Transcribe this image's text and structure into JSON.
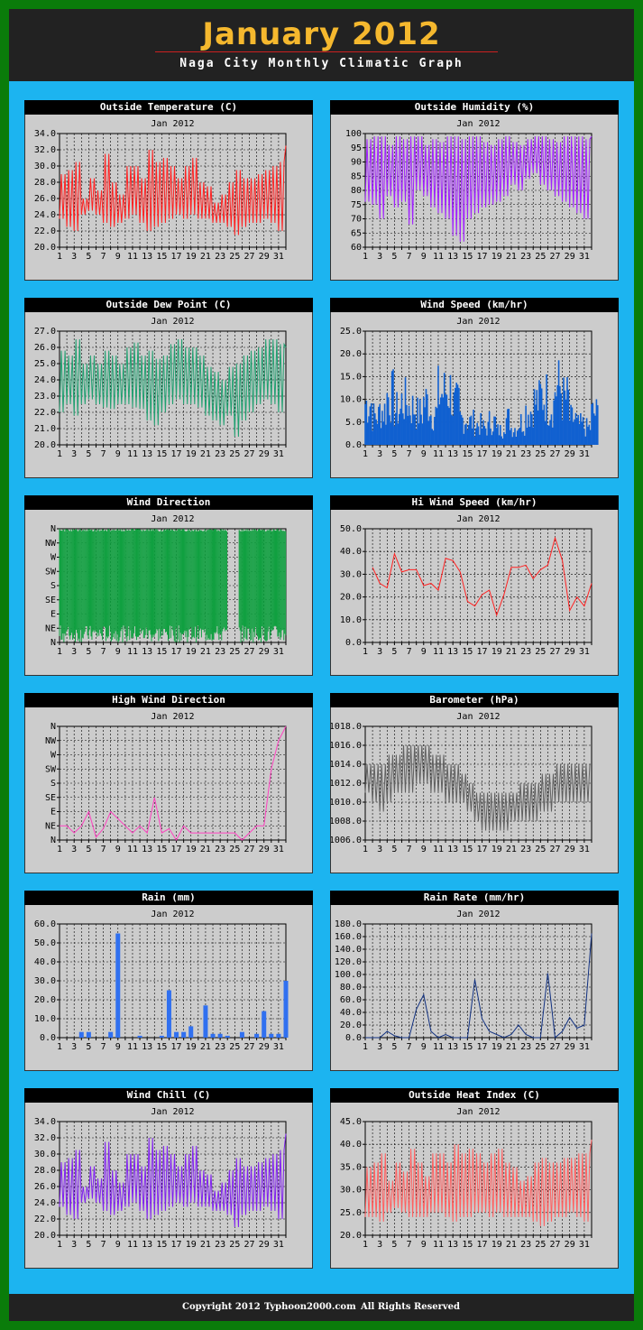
{
  "header": {
    "title": "January 2012",
    "subtitle": "Naga City Monthly Climatic Graph"
  },
  "footer": {
    "copyright": "Copyright 2012",
    "site": "Typhoon2000.com",
    "rights": "All Rights Reserved"
  },
  "chart_data": [
    {
      "id": "temp",
      "type": "line",
      "title": "Outside Temperature (C)",
      "subtitle": "Jan 2012",
      "color": "#ff2020",
      "ylim": [
        20,
        34
      ],
      "yticks": [
        20,
        22,
        24,
        26,
        28,
        30,
        32,
        34
      ],
      "ydec": 1,
      "x": [
        1,
        2,
        3,
        4,
        5,
        6,
        7,
        8,
        9,
        10,
        11,
        12,
        13,
        14,
        15,
        16,
        17,
        18,
        19,
        20,
        21,
        22,
        23,
        24,
        25,
        26,
        27,
        28,
        29,
        30,
        31,
        32
      ],
      "low": [
        23.5,
        22.5,
        22,
        24,
        24.5,
        24,
        23,
        22.5,
        23,
        23.5,
        24,
        23,
        22,
        22.5,
        23,
        23.5,
        24,
        23.5,
        24,
        23.5,
        23.5,
        23,
        23,
        22.5,
        21.5,
        22.5,
        23,
        23,
        23.5,
        23,
        22,
        23.5
      ],
      "high": [
        29,
        29.5,
        30.5,
        26,
        28.5,
        27,
        31.5,
        28,
        26.5,
        30,
        30,
        28.5,
        32,
        30.5,
        31,
        30,
        28.5,
        30,
        31,
        28,
        27.5,
        25.5,
        26.5,
        28,
        29.5,
        28.5,
        28.5,
        29,
        29.5,
        30,
        30.5,
        32.5
      ]
    },
    {
      "id": "hum",
      "type": "line",
      "title": "Outside Humidity (%)",
      "subtitle": "Jan 2012",
      "color": "#a020ff",
      "ylim": [
        60,
        100
      ],
      "yticks": [
        60,
        65,
        70,
        75,
        80,
        85,
        90,
        95,
        100
      ],
      "ydec": 0,
      "x": [
        1,
        2,
        3,
        4,
        5,
        6,
        7,
        8,
        9,
        10,
        11,
        12,
        13,
        14,
        15,
        16,
        17,
        18,
        19,
        20,
        21,
        22,
        23,
        24,
        25,
        26,
        27,
        28,
        29,
        30,
        31,
        32
      ],
      "low": [
        76,
        75,
        70,
        78,
        74,
        76,
        68,
        80,
        78,
        74,
        72,
        70,
        64,
        62,
        70,
        72,
        74,
        75,
        76,
        78,
        82,
        80,
        84,
        86,
        82,
        80,
        78,
        76,
        74,
        72,
        70,
        66
      ],
      "high": [
        98,
        99,
        99,
        96,
        99,
        98,
        99,
        99,
        96,
        98,
        97,
        99,
        99,
        98,
        99,
        99,
        97,
        96,
        98,
        99,
        97,
        96,
        98,
        99,
        99,
        98,
        97,
        99,
        99,
        99,
        98,
        99
      ]
    },
    {
      "id": "dew",
      "type": "line",
      "title": "Outside Dew Point (C)",
      "subtitle": "Jan 2012",
      "color": "#20a070",
      "ylim": [
        20,
        27
      ],
      "yticks": [
        20,
        21,
        22,
        23,
        24,
        25,
        26,
        27
      ],
      "ydec": 1,
      "x": [
        1,
        2,
        3,
        4,
        5,
        6,
        7,
        8,
        9,
        10,
        11,
        12,
        13,
        14,
        15,
        16,
        17,
        18,
        19,
        20,
        21,
        22,
        23,
        24,
        25,
        26,
        27,
        28,
        29,
        30,
        31,
        32
      ],
      "low": [
        22,
        22.5,
        21.8,
        22.5,
        22.8,
        22.5,
        22.3,
        22.2,
        22.5,
        22.5,
        22.3,
        22.2,
        21.5,
        21.2,
        22,
        22.5,
        22.8,
        22.5,
        22.5,
        22.3,
        21.8,
        21.5,
        21.2,
        21.8,
        20.5,
        21.5,
        22,
        22.5,
        22.8,
        22.5,
        22,
        22.5
      ],
      "high": [
        25.8,
        25.5,
        26.5,
        25,
        25.5,
        25,
        25.8,
        25.5,
        25,
        26,
        26.3,
        25.5,
        25.8,
        25.3,
        25.5,
        26.2,
        26.5,
        26,
        26,
        25.5,
        24.8,
        24.5,
        24,
        24.8,
        25,
        25.5,
        25.8,
        26,
        26.5,
        26.5,
        26.2,
        26
      ]
    },
    {
      "id": "wind",
      "type": "bar",
      "title": "Wind Speed (km/hr)",
      "subtitle": "Jan 2012",
      "color": "#1060d0",
      "ylim": [
        0,
        25
      ],
      "yticks": [
        0,
        5,
        10,
        15,
        20,
        25
      ],
      "ydec": 1,
      "x": [
        1,
        2,
        3,
        4,
        5,
        6,
        7,
        8,
        9,
        10,
        11,
        12,
        13,
        14,
        15,
        16,
        17,
        18,
        19,
        20,
        21,
        22,
        23,
        24,
        25,
        26,
        27,
        28,
        29,
        30,
        31,
        32
      ],
      "high": [
        14.5,
        10,
        12,
        17,
        12,
        15,
        13,
        11,
        15,
        11,
        18,
        19,
        14,
        9,
        8,
        7,
        6,
        8,
        5,
        9,
        6,
        8,
        12,
        15,
        17,
        14,
        20,
        16,
        9,
        7,
        6,
        11
      ]
    },
    {
      "id": "wdir",
      "type": "fill",
      "title": "Wind Direction",
      "subtitle": "Jan 2012",
      "color": "#10a040",
      "ylim": [
        0,
        8
      ],
      "ylabels": [
        "N",
        "NE",
        "E",
        "SE",
        "S",
        "SW",
        "W",
        "NW",
        "N"
      ],
      "note": "dense directional fill"
    },
    {
      "id": "hiwind",
      "type": "line",
      "title": "Hi Wind Speed (km/hr)",
      "subtitle": "Jan 2012",
      "color": "#ff2020",
      "ylim": [
        0,
        50
      ],
      "yticks": [
        0,
        10,
        20,
        30,
        40,
        50
      ],
      "ydec": 1,
      "x": [
        2,
        3,
        4,
        5,
        6,
        7,
        8,
        9,
        10,
        11,
        12,
        13,
        14,
        15,
        16,
        17,
        18,
        19,
        20,
        21,
        22,
        23,
        24,
        25,
        26,
        27,
        28,
        29,
        30,
        31,
        32
      ],
      "values": [
        33,
        26,
        24,
        39,
        31,
        32,
        32,
        25,
        26,
        23,
        37,
        36,
        31,
        18,
        16,
        21,
        23,
        12,
        21,
        33,
        33,
        34,
        28,
        32,
        34,
        46,
        36,
        14,
        20,
        16,
        26
      ]
    },
    {
      "id": "hiwdir",
      "type": "line",
      "title": "High Wind Direction",
      "subtitle": "Jan 2012",
      "color": "#ff40c0",
      "ylim": [
        0,
        8
      ],
      "ylabels": [
        "N",
        "NE",
        "E",
        "SE",
        "S",
        "SW",
        "W",
        "NW",
        "N"
      ],
      "x": [
        1,
        2,
        3,
        4,
        5,
        6,
        7,
        8,
        9,
        10,
        11,
        12,
        13,
        14,
        15,
        16,
        17,
        18,
        19,
        20,
        21,
        22,
        23,
        24,
        25,
        26,
        27,
        28,
        29,
        30,
        31,
        32
      ],
      "values": [
        1,
        1,
        0.5,
        1,
        2,
        0.2,
        0.8,
        2,
        1.5,
        1,
        0.5,
        1,
        0.5,
        3,
        0.5,
        0.8,
        0,
        1,
        0.5,
        0.5,
        0.5,
        0.5,
        0.5,
        0.5,
        0.5,
        0,
        0.5,
        1,
        1,
        5,
        7,
        8
      ]
    },
    {
      "id": "baro",
      "type": "line",
      "title": "Barometer (hPa)",
      "subtitle": "Jan 2012",
      "color": "#606060",
      "ylim": [
        1006,
        1018
      ],
      "yticks": [
        1006,
        1008,
        1010,
        1012,
        1014,
        1016,
        1018
      ],
      "ydec": 1,
      "x": [
        1,
        2,
        3,
        4,
        5,
        6,
        7,
        8,
        9,
        10,
        11,
        12,
        13,
        14,
        15,
        16,
        17,
        18,
        19,
        20,
        21,
        22,
        23,
        24,
        25,
        26,
        27,
        28,
        29,
        30,
        31,
        32
      ],
      "low": [
        1011,
        1010,
        1009,
        1010,
        1011,
        1011,
        1011,
        1012,
        1012,
        1011,
        1011,
        1010,
        1010,
        1010,
        1009,
        1008,
        1007,
        1007,
        1007,
        1007,
        1008,
        1008,
        1008,
        1008,
        1009,
        1009,
        1010,
        1010,
        1010,
        1010,
        1010,
        1010
      ],
      "high": [
        1014,
        1014,
        1014,
        1015,
        1015,
        1016,
        1016,
        1016,
        1016,
        1015,
        1015,
        1014,
        1014,
        1013,
        1012,
        1011,
        1011,
        1011,
        1011,
        1011,
        1011,
        1012,
        1012,
        1012,
        1013,
        1013,
        1014,
        1014,
        1014,
        1014,
        1014,
        1014
      ]
    },
    {
      "id": "rain",
      "type": "bar",
      "title": "Rain (mm)",
      "subtitle": "Jan 2012",
      "color": "#3070f0",
      "ylim": [
        0,
        60
      ],
      "yticks": [
        0,
        10,
        20,
        30,
        40,
        50,
        60
      ],
      "ydec": 1,
      "x": [
        4,
        5,
        8,
        9,
        12,
        15,
        16,
        17,
        18,
        19,
        21,
        22,
        23,
        24,
        26,
        28,
        29,
        30,
        31,
        32
      ],
      "values": [
        3,
        3,
        3,
        55,
        1,
        1,
        25,
        3,
        3,
        6,
        17,
        2,
        2,
        1,
        3,
        2,
        14,
        2,
        2,
        30
      ]
    },
    {
      "id": "rainrate",
      "type": "line",
      "title": "Rain Rate (mm/hr)",
      "subtitle": "Jan 2012",
      "color": "#103080",
      "ylim": [
        0,
        180
      ],
      "yticks": [
        0,
        20,
        40,
        60,
        80,
        100,
        120,
        140,
        160,
        180
      ],
      "ydec": 1,
      "x": [
        1,
        2,
        3,
        4,
        5,
        6,
        7,
        8,
        9,
        10,
        11,
        12,
        13,
        14,
        15,
        16,
        17,
        18,
        19,
        20,
        21,
        22,
        23,
        24,
        25,
        26,
        27,
        28,
        29,
        30,
        31,
        32
      ],
      "values": [
        0,
        0,
        0,
        10,
        3,
        0,
        0,
        45,
        68,
        10,
        0,
        5,
        0,
        0,
        0,
        92,
        30,
        10,
        5,
        0,
        5,
        20,
        5,
        0,
        0,
        102,
        0,
        10,
        32,
        15,
        20,
        165
      ]
    },
    {
      "id": "chill",
      "type": "line",
      "title": "Wind Chill (C)",
      "subtitle": "Jan 2012",
      "color": "#8020f0",
      "ylim": [
        20,
        34
      ],
      "yticks": [
        20,
        22,
        24,
        26,
        28,
        30,
        32,
        34
      ],
      "ydec": 1,
      "x": [
        1,
        2,
        3,
        4,
        5,
        6,
        7,
        8,
        9,
        10,
        11,
        12,
        13,
        14,
        15,
        16,
        17,
        18,
        19,
        20,
        21,
        22,
        23,
        24,
        25,
        26,
        27,
        28,
        29,
        30,
        31,
        32
      ],
      "low": [
        23.5,
        22.5,
        22,
        24,
        24.5,
        24,
        23,
        22.5,
        23,
        23.5,
        24,
        23,
        22,
        22.5,
        23,
        23.5,
        24,
        23.5,
        24,
        23.5,
        23.5,
        23,
        23,
        22.5,
        21,
        22.5,
        23,
        23,
        23.5,
        23,
        22,
        23.5
      ],
      "high": [
        29,
        29.5,
        30.5,
        26,
        28.5,
        27,
        31.5,
        28,
        26.5,
        30,
        30,
        28.5,
        32,
        30.5,
        31,
        30,
        28.5,
        30,
        31,
        28,
        27.5,
        25.5,
        26.5,
        28,
        29.5,
        28.5,
        28.5,
        29,
        29.5,
        30,
        30.5,
        32.5
      ]
    },
    {
      "id": "heat",
      "type": "line",
      "title": "Outside Heat Index (C)",
      "subtitle": "Jan 2012",
      "color": "#ff6060",
      "ylim": [
        20,
        45
      ],
      "yticks": [
        20,
        25,
        30,
        35,
        40,
        45
      ],
      "ydec": 1,
      "x": [
        1,
        2,
        3,
        4,
        5,
        6,
        7,
        8,
        9,
        10,
        11,
        12,
        13,
        14,
        15,
        16,
        17,
        18,
        19,
        20,
        21,
        22,
        23,
        24,
        25,
        26,
        27,
        28,
        29,
        30,
        31,
        32
      ],
      "low": [
        24,
        24,
        23,
        25,
        26,
        25,
        24,
        24,
        24,
        25,
        25,
        24,
        23,
        24,
        24,
        25,
        25,
        24,
        25,
        24,
        24,
        24,
        24,
        23,
        22,
        23,
        24,
        24,
        25,
        24,
        23,
        25
      ],
      "high": [
        35,
        36,
        38,
        32,
        36,
        34,
        39,
        36,
        33,
        38,
        38,
        36,
        40,
        38,
        39,
        38,
        36,
        38,
        39,
        36,
        35,
        32,
        33,
        36,
        37,
        36,
        36,
        37,
        37,
        38,
        38,
        41
      ]
    }
  ]
}
